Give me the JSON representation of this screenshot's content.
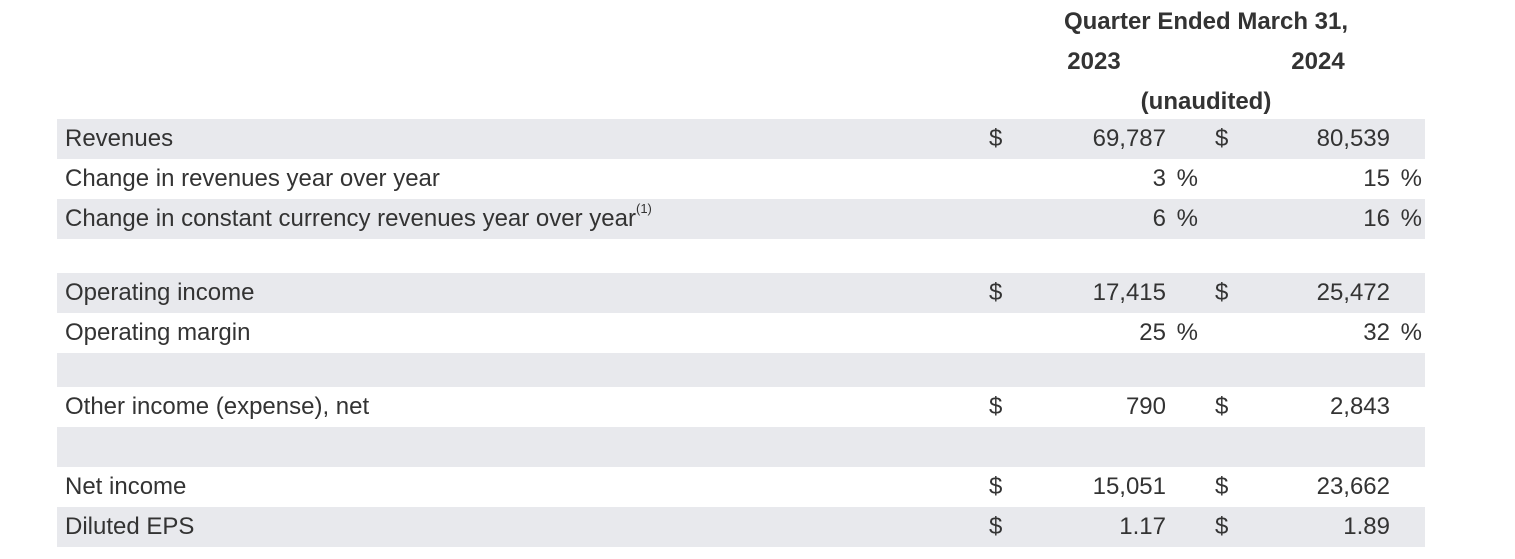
{
  "header": {
    "period": "Quarter Ended March 31,",
    "years": [
      "2023",
      "2024"
    ],
    "note": "(unaudited)"
  },
  "colors": {
    "shaded_row": "#e8e9ed",
    "text": "#333333"
  },
  "rows": [
    {
      "label": "Revenues",
      "currency": "$",
      "v2023": "69,787",
      "v2024": "80,539",
      "unit": ""
    },
    {
      "label": "Change in revenues year over year",
      "currency": "",
      "v2023": "3",
      "v2024": "15",
      "unit": "%"
    },
    {
      "label": "Change in constant currency revenues year over year",
      "footnote": "(1)",
      "currency": "",
      "v2023": "6",
      "v2024": "16",
      "unit": "%"
    },
    {
      "label": "Operating income",
      "currency": "$",
      "v2023": "17,415",
      "v2024": "25,472",
      "unit": ""
    },
    {
      "label": "Operating margin",
      "currency": "",
      "v2023": "25",
      "v2024": "32",
      "unit": "%"
    },
    {
      "label": "Other income (expense), net",
      "currency": "$",
      "v2023": "790",
      "v2024": "2,843",
      "unit": ""
    },
    {
      "label": "Net income",
      "currency": "$",
      "v2023": "15,051",
      "v2024": "23,662",
      "unit": ""
    },
    {
      "label": "Diluted EPS",
      "currency": "$",
      "v2023": "1.17",
      "v2024": "1.89",
      "unit": ""
    }
  ]
}
